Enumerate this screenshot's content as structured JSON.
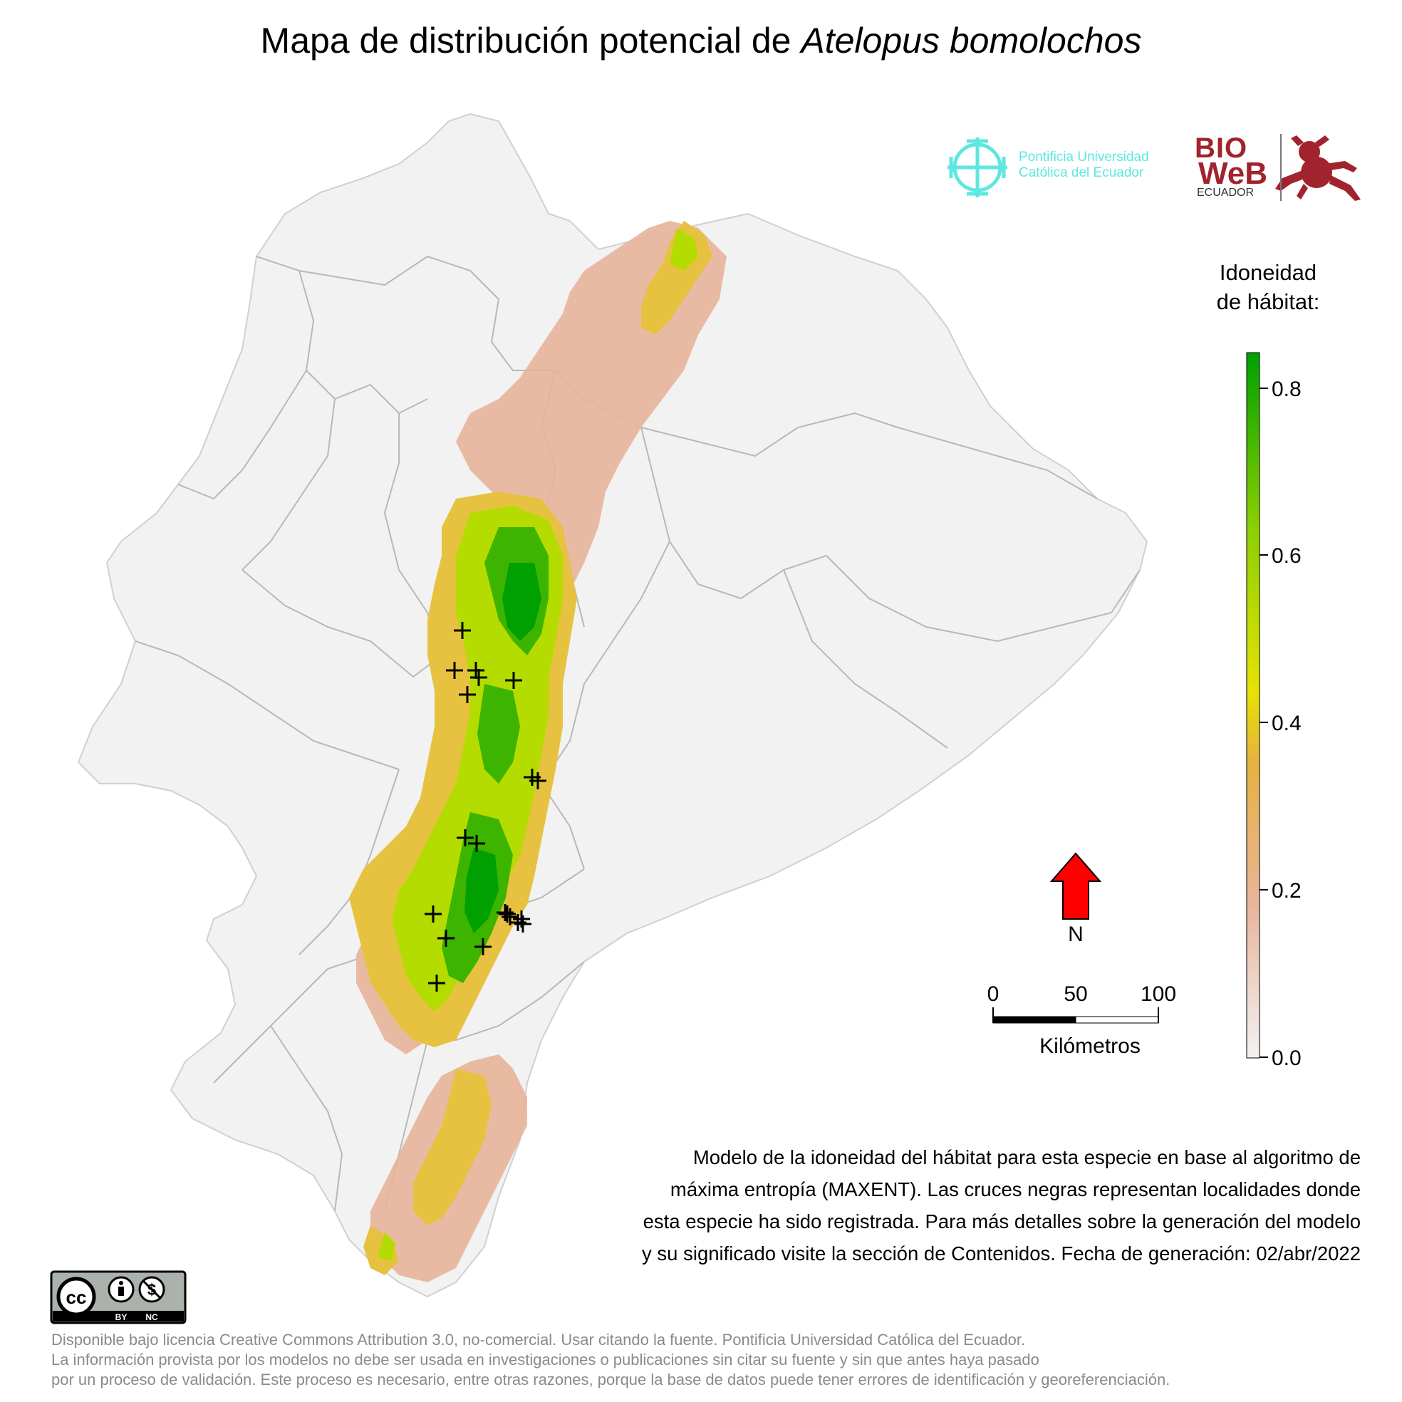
{
  "title": {
    "prefix": "Mapa de distribución potencial de ",
    "species": "Atelopus bomolochos"
  },
  "logos": {
    "puce_line1": "Pontificia Universidad",
    "puce_line2": "Católica del Ecuador",
    "bioweb_bio": "BIO",
    "bioweb_web": "WeB",
    "bioweb_ecuador": "ECUADOR",
    "puce_color": "#5ce8e0",
    "bioweb_color": "#a0232d"
  },
  "legend": {
    "title_line1": "Idoneidad",
    "title_line2": "de hábitat:",
    "ticks": [
      "0.0",
      "0.2",
      "0.4",
      "0.6",
      "0.8"
    ],
    "range": [
      0,
      0.84
    ],
    "colors": [
      "#f2f2f2",
      "#e8b49a",
      "#e6b240",
      "#e6e200",
      "#8cd000",
      "#00a000"
    ]
  },
  "north_arrow": {
    "label": "N",
    "color": "#ff0000"
  },
  "scale_bar": {
    "labels": [
      "0",
      "50",
      "100"
    ],
    "unit": "Kilómetros"
  },
  "caption": {
    "lines": [
      "Modelo de la idoneidad del hábitat para esta especie en base al algoritmo de",
      "máxima entropía (MAXENT). Las cruces negras representan localidades donde",
      "esta especie ha sido registrada. Para más detalles sobre la generación del modelo",
      "y su significado visite la sección de Contenidos. Fecha de generación: 02/abr/2022"
    ]
  },
  "license_badge": {
    "cc": "cc",
    "by": "BY",
    "nc": "NC"
  },
  "footer": {
    "lines": [
      "Disponible bajo licencia Creative Commons Attribution 3.0, no-comercial. Usar citando la fuente. Pontificia Universidad Católica del Ecuador.",
      "La información provista por los modelos no debe ser usada en investigaciones o publicaciones sin citar su fuente y sin que antes haya pasado",
      "por un proceso de validación. Este proceso es necesario, entre otras razones, porque la base de datos puede tener errores de identificación y georeferenciación."
    ]
  },
  "map": {
    "background_color": "#f2f2f2",
    "border_color": "#b5b5b5",
    "record_count": 20
  }
}
